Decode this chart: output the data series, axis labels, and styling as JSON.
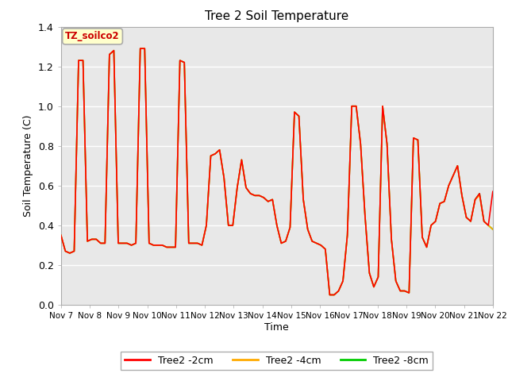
{
  "title": "Tree 2 Soil Temperature",
  "xlabel": "Time",
  "ylabel": "Soil Temperature (C)",
  "ylim": [
    0.0,
    1.4
  ],
  "background_color": "#ffffff",
  "plot_bg_color": "#e8e8e8",
  "grid_color": "#ffffff",
  "annotation_box_text": "TZ_soilco2",
  "annotation_box_bg": "#ffffcc",
  "annotation_box_border": "#aaaaaa",
  "annotation_text_color": "#cc0000",
  "xtick_labels": [
    "Nov 7",
    "Nov 8",
    "Nov 9",
    "Nov 10",
    "Nov 11",
    "Nov 12",
    "Nov 13",
    "Nov 14",
    "Nov 15",
    "Nov 16",
    "Nov 17",
    "Nov 18",
    "Nov 19",
    "Nov 20",
    "Nov 21",
    "Nov 22"
  ],
  "legend_entries": [
    "Tree2 -2cm",
    "Tree2 -4cm",
    "Tree2 -8cm"
  ],
  "legend_colors": [
    "#ff0000",
    "#ffaa00",
    "#00cc00"
  ],
  "line_colors": {
    "2cm": "#ff0000",
    "4cm": "#ffaa00",
    "8cm": "#00cc00"
  },
  "data_8cm": [
    0.35,
    0.27,
    0.26,
    0.27,
    1.23,
    1.23,
    0.32,
    0.33,
    0.33,
    0.31,
    0.31,
    1.26,
    1.28,
    0.31,
    0.31,
    0.31,
    0.3,
    0.31,
    1.29,
    1.29,
    0.31,
    0.3,
    0.3,
    0.3,
    0.29,
    0.29,
    0.29,
    1.23,
    1.22,
    0.31,
    0.31,
    0.31,
    0.3,
    0.4,
    0.75,
    0.76,
    0.78,
    0.64,
    0.4,
    0.4,
    0.59,
    0.73,
    0.59,
    0.56,
    0.55,
    0.55,
    0.54,
    0.52,
    0.53,
    0.4,
    0.31,
    0.32,
    0.39,
    0.97,
    0.95,
    0.53,
    0.38,
    0.32,
    0.31,
    0.3,
    0.28,
    0.05,
    0.05,
    0.07,
    0.12,
    0.35,
    1.0,
    1.0,
    0.81,
    0.45,
    0.16,
    0.09,
    0.14,
    1.0,
    0.81,
    0.33,
    0.12,
    0.07,
    0.07,
    0.06,
    0.84,
    0.83,
    0.34,
    0.29,
    0.4,
    0.42,
    0.51,
    0.52,
    0.6,
    0.65,
    0.7,
    0.55,
    0.44,
    0.42,
    0.53,
    0.56,
    0.42,
    0.4,
    0.38
  ],
  "data_4cm": [
    0.35,
    0.27,
    0.26,
    0.27,
    1.23,
    1.23,
    0.32,
    0.33,
    0.33,
    0.31,
    0.31,
    1.26,
    1.28,
    0.31,
    0.31,
    0.31,
    0.3,
    0.31,
    1.29,
    1.29,
    0.31,
    0.3,
    0.3,
    0.3,
    0.29,
    0.29,
    0.29,
    1.23,
    1.22,
    0.31,
    0.31,
    0.31,
    0.3,
    0.4,
    0.75,
    0.76,
    0.78,
    0.64,
    0.4,
    0.4,
    0.59,
    0.73,
    0.59,
    0.56,
    0.55,
    0.55,
    0.54,
    0.52,
    0.53,
    0.4,
    0.31,
    0.32,
    0.39,
    0.97,
    0.95,
    0.53,
    0.38,
    0.32,
    0.31,
    0.3,
    0.28,
    0.05,
    0.05,
    0.07,
    0.12,
    0.35,
    1.0,
    1.0,
    0.81,
    0.45,
    0.16,
    0.09,
    0.14,
    1.0,
    0.81,
    0.33,
    0.12,
    0.07,
    0.07,
    0.06,
    0.84,
    0.83,
    0.34,
    0.29,
    0.4,
    0.42,
    0.51,
    0.52,
    0.6,
    0.65,
    0.7,
    0.55,
    0.44,
    0.42,
    0.53,
    0.55,
    0.42,
    0.4,
    0.38
  ],
  "data_2cm": [
    0.35,
    0.27,
    0.26,
    0.27,
    1.23,
    1.23,
    0.32,
    0.33,
    0.33,
    0.31,
    0.31,
    1.26,
    1.28,
    0.31,
    0.31,
    0.31,
    0.3,
    0.31,
    1.29,
    1.29,
    0.31,
    0.3,
    0.3,
    0.3,
    0.29,
    0.29,
    0.29,
    1.23,
    1.22,
    0.31,
    0.31,
    0.31,
    0.3,
    0.4,
    0.75,
    0.76,
    0.78,
    0.64,
    0.4,
    0.4,
    0.59,
    0.73,
    0.59,
    0.56,
    0.55,
    0.55,
    0.54,
    0.52,
    0.53,
    0.4,
    0.31,
    0.32,
    0.39,
    0.97,
    0.95,
    0.53,
    0.38,
    0.32,
    0.31,
    0.3,
    0.28,
    0.05,
    0.05,
    0.07,
    0.12,
    0.35,
    1.0,
    1.0,
    0.81,
    0.45,
    0.16,
    0.09,
    0.14,
    1.0,
    0.81,
    0.33,
    0.12,
    0.07,
    0.07,
    0.06,
    0.84,
    0.83,
    0.34,
    0.29,
    0.4,
    0.42,
    0.51,
    0.52,
    0.6,
    0.65,
    0.7,
    0.55,
    0.44,
    0.42,
    0.53,
    0.56,
    0.42,
    0.4,
    0.57
  ]
}
